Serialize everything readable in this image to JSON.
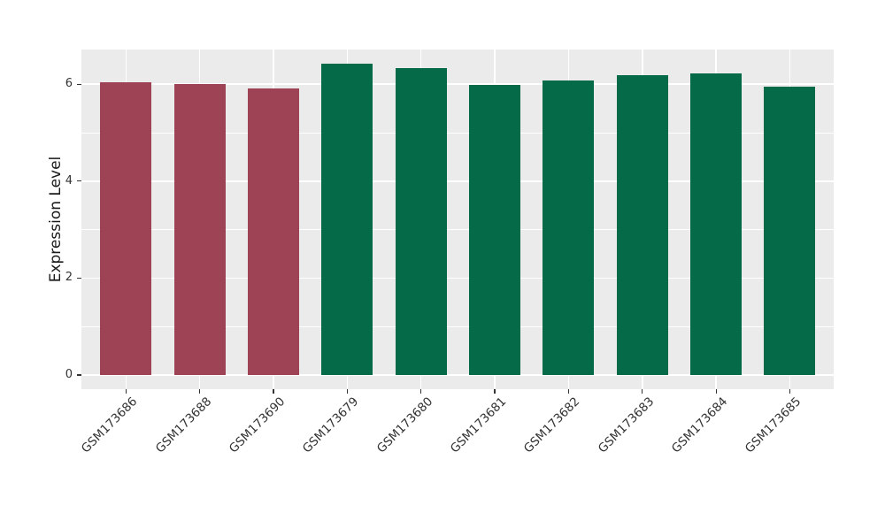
{
  "chart_data": {
    "type": "bar",
    "title": "",
    "xlabel": "",
    "ylabel": "Expression Level",
    "categories": [
      "GSM173686",
      "GSM173688",
      "GSM173690",
      "GSM173679",
      "GSM173680",
      "GSM173681",
      "GSM173682",
      "GSM173683",
      "GSM173684",
      "GSM173685"
    ],
    "values": [
      6.04,
      6.0,
      5.92,
      6.42,
      6.34,
      5.98,
      6.08,
      6.19,
      6.22,
      5.94
    ],
    "bar_colors": [
      "#9D4355",
      "#9D4355",
      "#9D4355",
      "#056A48",
      "#056A48",
      "#056A48",
      "#056A48",
      "#056A48",
      "#056A48",
      "#056A48"
    ],
    "group_colors": {
      "group1_red": "#9D4355",
      "group2_green": "#056A48"
    },
    "ylim": [
      0,
      6.75
    ],
    "yticks": [
      0,
      2,
      4,
      6
    ],
    "yticks_minor": [
      1,
      3,
      5
    ],
    "grid": true,
    "legend": false,
    "x_tick_rotation_deg": 45,
    "styles": {
      "page_bg": "#FFFFFF",
      "panel_bg": "#EBEBEB",
      "grid_color": "#FFFFFF",
      "tick_mark_color": "#333333",
      "tick_label_color": "#333333",
      "axis_title_color": "#1A1A1A"
    }
  }
}
